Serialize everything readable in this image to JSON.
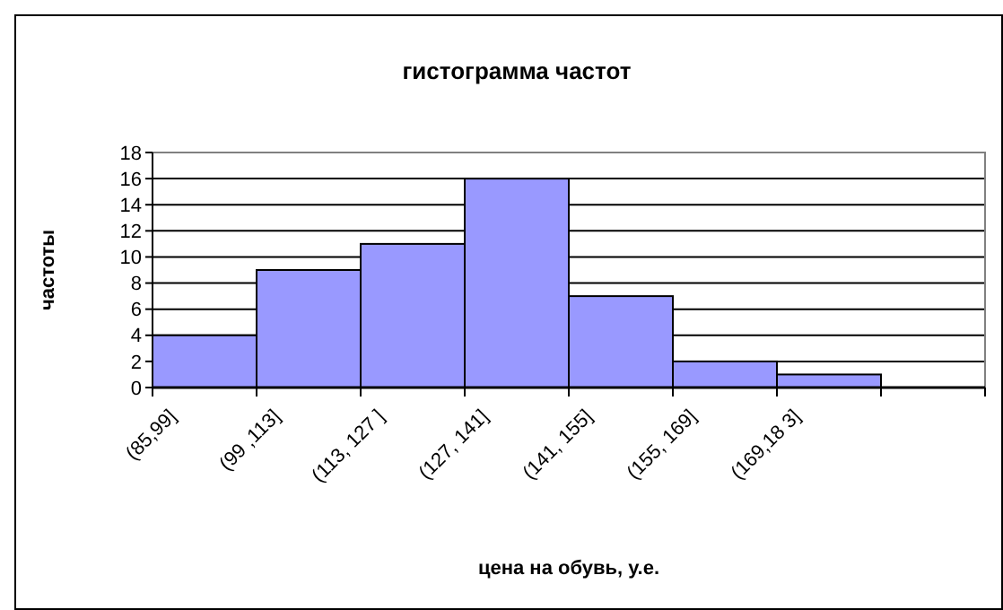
{
  "chart_data": {
    "type": "bar",
    "title": "гистограмма частот",
    "xlabel": "цена на обувь, у.е.",
    "ylabel": "частоты",
    "categories": [
      "(85,99]",
      "(99 ,113]",
      "(113, 127 ]",
      "(127, 141]",
      "(141, 155]",
      "(155, 169]",
      "(169,18 3]",
      null
    ],
    "values": [
      4,
      9,
      11,
      16,
      7,
      2,
      1,
      null
    ],
    "color": "#9999ff",
    "ylim": [
      0,
      18
    ],
    "yticks": [
      0,
      2,
      4,
      6,
      8,
      10,
      12,
      14,
      16,
      18
    ],
    "grid": "y"
  }
}
